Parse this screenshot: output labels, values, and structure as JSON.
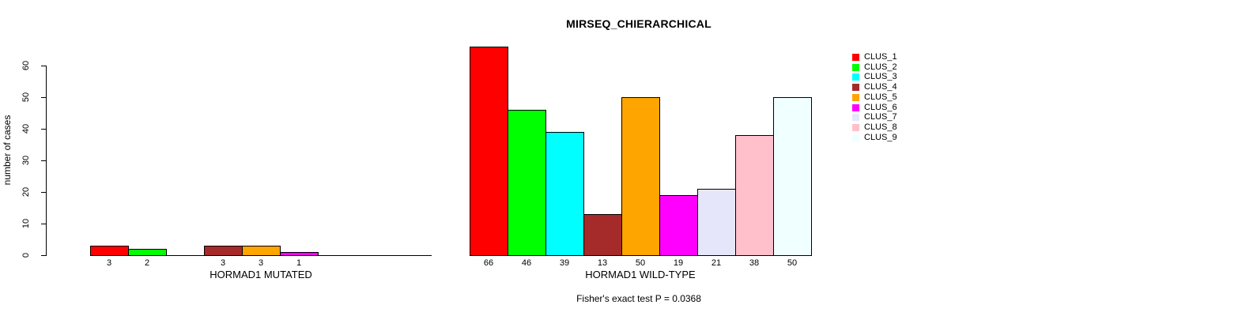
{
  "chart_data": {
    "type": "bar",
    "title": "MIRSEQ_CHIERARCHICAL",
    "ylabel": "number of cases",
    "ylim": [
      0,
      60
    ],
    "yticks": [
      0,
      10,
      20,
      30,
      40,
      50,
      60
    ],
    "grid": false,
    "legend_position": "right",
    "categories": [
      "CLUS_1",
      "CLUS_2",
      "CLUS_3",
      "CLUS_4",
      "CLUS_5",
      "CLUS_6",
      "CLUS_7",
      "CLUS_8",
      "CLUS_9"
    ],
    "colors": [
      "#FF0000",
      "#00FF00",
      "#00FFFF",
      "#A52A2A",
      "#FFA500",
      "#FF00FF",
      "#E6E6FA",
      "#FFC0CB",
      "#F0FFFF"
    ],
    "panels": [
      {
        "xlabel": "HORMAD1 MUTATED",
        "values": [
          3,
          2,
          0,
          3,
          3,
          1,
          0,
          0,
          0
        ]
      },
      {
        "xlabel": "HORMAD1 WILD-TYPE",
        "values": [
          66,
          46,
          39,
          13,
          50,
          19,
          21,
          38,
          50
        ]
      }
    ],
    "annotation": "Fisher's exact test P = 0.0368"
  }
}
